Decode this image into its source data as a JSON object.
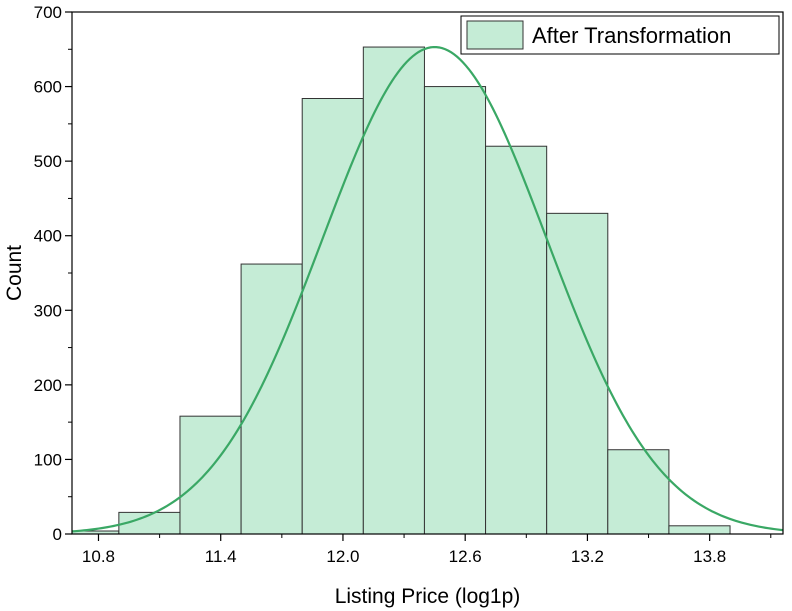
{
  "chart_data": {
    "type": "bar",
    "xlabel": "Listing Price (log1p)",
    "ylabel": "Count",
    "xlim": [
      10.67,
      14.16
    ],
    "ylim": [
      0,
      700
    ],
    "xticks": [
      "10.8",
      "11.4",
      "12.0",
      "12.6",
      "13.2",
      "13.8"
    ],
    "xtick_values": [
      10.8,
      11.4,
      12.0,
      12.6,
      13.2,
      13.8
    ],
    "yticks": [
      "0",
      "100",
      "200",
      "300",
      "400",
      "500",
      "600",
      "700"
    ],
    "ytick_values": [
      0,
      100,
      200,
      300,
      400,
      500,
      600,
      700
    ],
    "bin_edges": [
      10.3,
      10.6,
      10.9,
      11.2,
      11.5,
      11.8,
      12.1,
      12.4,
      12.7,
      13.0,
      13.3,
      13.6,
      13.9
    ],
    "series": [
      {
        "name": "After Transformation",
        "values": [
          1,
          4,
          29,
          158,
          362,
          584,
          653,
          600,
          520,
          430,
          113,
          11
        ]
      }
    ],
    "fit_curve": {
      "type": "normal",
      "mean": 12.45,
      "std": 0.55,
      "peak": 653
    },
    "legend": "top-right",
    "colors": {
      "bar_fill": "#c5ecd6",
      "bar_edge": "#333333",
      "curve": "#3aa865"
    },
    "grid": false
  }
}
